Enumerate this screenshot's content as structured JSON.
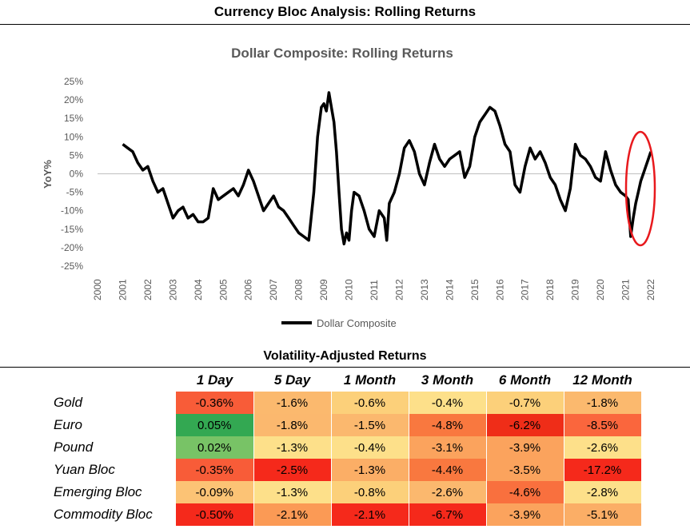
{
  "page_title": "Currency Bloc Analysis: Rolling Returns",
  "chart_data": {
    "type": "line",
    "title": "Dollar Composite: Rolling Returns",
    "xlabel": "",
    "ylabel": "YoY%",
    "xlim": [
      2000,
      2022
    ],
    "ylim": [
      -25,
      25
    ],
    "x_ticks": [
      "2000",
      "2001",
      "2002",
      "2003",
      "2004",
      "2005",
      "2006",
      "2007",
      "2008",
      "2009",
      "2010",
      "2011",
      "2012",
      "2013",
      "2014",
      "2015",
      "2016",
      "2017",
      "2018",
      "2019",
      "2020",
      "2021",
      "2022"
    ],
    "y_ticks": [
      "25%",
      "20%",
      "15%",
      "10%",
      "5%",
      "0%",
      "-5%",
      "-10%",
      "-15%",
      "-20%",
      "-25%"
    ],
    "legend": "bottom",
    "series": [
      {
        "name": "Dollar Composite",
        "color": "#000000",
        "x": [
          2001.0,
          2001.2,
          2001.4,
          2001.6,
          2001.8,
          2002.0,
          2002.2,
          2002.4,
          2002.6,
          2002.8,
          2003.0,
          2003.2,
          2003.4,
          2003.6,
          2003.8,
          2004.0,
          2004.2,
          2004.4,
          2004.6,
          2004.8,
          2005.0,
          2005.2,
          2005.4,
          2005.6,
          2005.8,
          2006.0,
          2006.2,
          2006.4,
          2006.6,
          2006.8,
          2007.0,
          2007.2,
          2007.4,
          2007.6,
          2007.8,
          2008.0,
          2008.2,
          2008.4,
          2008.6,
          2008.75,
          2008.9,
          2009.0,
          2009.1,
          2009.2,
          2009.3,
          2009.4,
          2009.5,
          2009.6,
          2009.7,
          2009.8,
          2009.9,
          2010.0,
          2010.1,
          2010.2,
          2010.4,
          2010.6,
          2010.8,
          2011.0,
          2011.2,
          2011.4,
          2011.5,
          2011.6,
          2011.8,
          2012.0,
          2012.2,
          2012.4,
          2012.6,
          2012.8,
          2013.0,
          2013.2,
          2013.4,
          2013.6,
          2013.8,
          2014.0,
          2014.2,
          2014.4,
          2014.6,
          2014.8,
          2015.0,
          2015.2,
          2015.4,
          2015.6,
          2015.8,
          2016.0,
          2016.2,
          2016.4,
          2016.6,
          2016.8,
          2017.0,
          2017.2,
          2017.4,
          2017.6,
          2017.8,
          2018.0,
          2018.2,
          2018.4,
          2018.6,
          2018.8,
          2019.0,
          2019.2,
          2019.4,
          2019.6,
          2019.8,
          2020.0,
          2020.2,
          2020.4,
          2020.6,
          2020.8,
          2021.0,
          2021.1,
          2021.2,
          2021.3,
          2021.4,
          2021.5,
          2021.6,
          2021.7,
          2021.8,
          2021.9,
          2022.0
        ],
        "y": [
          8,
          7,
          6,
          3,
          1,
          2,
          -2,
          -5,
          -4,
          -8,
          -12,
          -10,
          -9,
          -12,
          -11,
          -13,
          -13,
          -12,
          -4,
          -7,
          -6,
          -5,
          -4,
          -6,
          -3,
          1,
          -2,
          -6,
          -10,
          -8,
          -6,
          -9,
          -10,
          -12,
          -14,
          -16,
          -17,
          -18,
          -5,
          10,
          18,
          19,
          17,
          22,
          18,
          14,
          6,
          -5,
          -15,
          -19,
          -16,
          -18,
          -10,
          -5,
          -6,
          -10,
          -15,
          -17,
          -10,
          -12,
          -18,
          -8,
          -5,
          0,
          7,
          9,
          6,
          0,
          -3,
          3,
          8,
          4,
          2,
          4,
          5,
          6,
          -1,
          2,
          10,
          14,
          16,
          18,
          17,
          13,
          8,
          6,
          -3,
          -5,
          2,
          7,
          4,
          6,
          3,
          -1,
          -3,
          -7,
          -10,
          -4,
          8,
          5,
          4,
          2,
          -1,
          -2,
          6,
          1,
          -3,
          -5,
          -6,
          -7,
          -17,
          -12,
          -8,
          -5,
          -2,
          0,
          2,
          4,
          6
        ]
      }
    ]
  },
  "annotation": {
    "shape": "ellipse",
    "color": "#e8191d"
  },
  "table": {
    "title": "Volatility-Adjusted Returns",
    "columns": [
      "1 Day",
      "5 Day",
      "1 Month",
      "3 Month",
      "6 Month",
      "12 Month"
    ],
    "rows": [
      {
        "label": "Gold",
        "values": [
          "-0.36%",
          "-1.6%",
          "-0.6%",
          "-0.4%",
          "-0.7%",
          "-1.8%"
        ],
        "colors": [
          "#f85c38",
          "#fbb96e",
          "#fcd07a",
          "#fde08a",
          "#fcd07a",
          "#fbb96e"
        ]
      },
      {
        "label": "Euro",
        "values": [
          "0.05%",
          "-1.8%",
          "-1.5%",
          "-4.8%",
          "-6.2%",
          "-8.5%"
        ],
        "colors": [
          "#33a852",
          "#fbb86e",
          "#fbb86e",
          "#f9783f",
          "#ef2d18",
          "#fa663d"
        ]
      },
      {
        "label": "Pound",
        "values": [
          "0.02%",
          "-1.3%",
          "-0.4%",
          "-3.1%",
          "-3.9%",
          "-2.6%"
        ],
        "colors": [
          "#78c366",
          "#fde08a",
          "#fde08a",
          "#fba35d",
          "#fba35d",
          "#fde08a"
        ]
      },
      {
        "label": "Yuan Bloc",
        "values": [
          "-0.35%",
          "-2.5%",
          "-1.3%",
          "-4.4%",
          "-3.5%",
          "-17.2%"
        ],
        "colors": [
          "#f85c38",
          "#f5291b",
          "#fbae66",
          "#f9783f",
          "#fba35d",
          "#f5291b"
        ]
      },
      {
        "label": "Emerging Bloc",
        "values": [
          "-0.09%",
          "-1.3%",
          "-0.8%",
          "-2.6%",
          "-4.6%",
          "-2.8%"
        ],
        "colors": [
          "#fcc375",
          "#fde08a",
          "#fcd07a",
          "#fbb86e",
          "#f9703e",
          "#fde08a"
        ]
      },
      {
        "label": "Commodity Bloc",
        "values": [
          "-0.50%",
          "-2.1%",
          "-2.1%",
          "-6.7%",
          "-3.9%",
          "-5.1%"
        ],
        "colors": [
          "#f5291b",
          "#fb9a55",
          "#f5291b",
          "#f5291b",
          "#fba35d",
          "#fbae66"
        ]
      }
    ]
  }
}
